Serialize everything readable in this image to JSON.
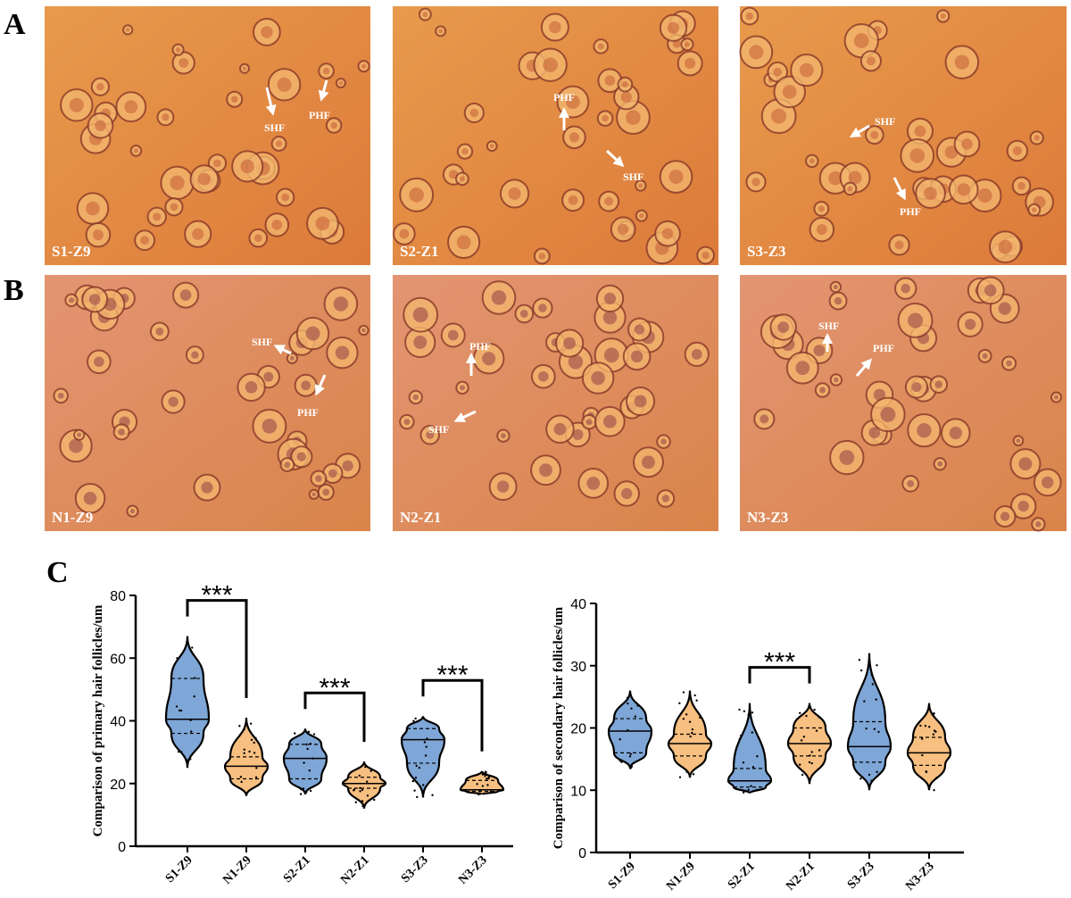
{
  "panel_labels": [
    "A",
    "B",
    "C"
  ],
  "images": [
    {
      "label": "S1-Z9",
      "annotations": [
        "SHF",
        "PHF"
      ]
    },
    {
      "label": "S2-Z1",
      "annotations": [
        "PHF",
        "SHF"
      ]
    },
    {
      "label": "S3-Z3",
      "annotations": [
        "SHF",
        "PHF"
      ]
    },
    {
      "label": "N1-Z9",
      "annotations": [
        "SHF",
        "PHF"
      ]
    },
    {
      "label": "N2-Z1",
      "annotations": [
        "PHF",
        "SHF"
      ]
    },
    {
      "label": "N3-Z3",
      "annotations": [
        "SHF",
        "PHF"
      ]
    }
  ],
  "chart_data": [
    {
      "type": "violin",
      "ylabel": "Comparison of primary hair follicles/um",
      "categories": [
        "S1-Z9",
        "N1-Z9",
        "S2-Z1",
        "N2-Z1",
        "S3-Z3",
        "N3-Z3"
      ],
      "colors": [
        "#7ea6d6",
        "#f7bf80",
        "#7ea6d6",
        "#f7bf80",
        "#7ea6d6",
        "#f7bf80"
      ],
      "stats": [
        {
          "min": 25,
          "q1": 36,
          "median": 40.5,
          "q3": 53.5,
          "max": 67
        },
        {
          "min": 16,
          "q1": 21.5,
          "median": 25.5,
          "q3": 28.5,
          "max": 41
        },
        {
          "min": 16.5,
          "q1": 21.5,
          "median": 28,
          "q3": 32.5,
          "max": 37.5
        },
        {
          "min": 12,
          "q1": 18.5,
          "median": 20,
          "q3": 22,
          "max": 27
        },
        {
          "min": 15.5,
          "q1": 26.5,
          "median": 34,
          "q3": 37.5,
          "max": 41.5
        },
        {
          "min": 16.5,
          "q1": 17.5,
          "median": 18,
          "q3": 21,
          "max": 24
        }
      ],
      "significance": [
        {
          "label": "***",
          "pair": [
            "S1-Z9",
            "N1-Z9"
          ]
        },
        {
          "label": "***",
          "pair": [
            "S2-Z1",
            "N2-Z1"
          ]
        },
        {
          "label": "***",
          "pair": [
            "S3-Z3",
            "N3-Z3"
          ]
        }
      ],
      "ylim": [
        0,
        80
      ],
      "yticks": [
        0,
        20,
        40,
        60,
        80
      ]
    },
    {
      "type": "violin",
      "ylabel": "Comparison of secondary hair follicles/um",
      "categories": [
        "S1-Z9",
        "N1-Z9",
        "S2-Z1",
        "N2-Z1",
        "S3-Z3",
        "N3-Z3"
      ],
      "colors": [
        "#7ea6d6",
        "#f7bf80",
        "#7ea6d6",
        "#f7bf80",
        "#7ea6d6",
        "#f7bf80"
      ],
      "stats": [
        {
          "min": 13.5,
          "q1": 16,
          "median": 19.5,
          "q3": 21.5,
          "max": 26
        },
        {
          "min": 12,
          "q1": 15.5,
          "median": 17.5,
          "q3": 19,
          "max": 26
        },
        {
          "min": 9.5,
          "q1": 10.5,
          "median": 11.5,
          "q3": 13.5,
          "max": 24
        },
        {
          "min": 11,
          "q1": 15.5,
          "median": 17.5,
          "q3": 20,
          "max": 24
        },
        {
          "min": 10,
          "q1": 14.5,
          "median": 17,
          "q3": 21,
          "max": 32
        },
        {
          "min": 10,
          "q1": 14,
          "median": 16,
          "q3": 18.5,
          "max": 24
        }
      ],
      "significance": [
        {
          "label": "***",
          "pair": [
            "S2-Z1",
            "N2-Z1"
          ]
        }
      ],
      "ylim": [
        0,
        40
      ],
      "yticks": [
        0,
        10,
        20,
        30,
        40
      ]
    }
  ]
}
